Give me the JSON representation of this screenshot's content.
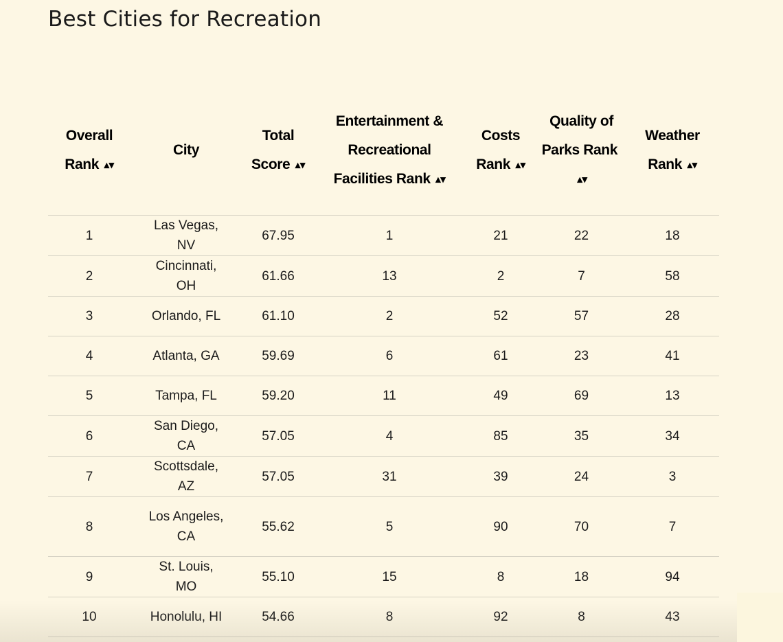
{
  "page": {
    "title": "Best Cities for Recreation"
  },
  "table": {
    "columns": [
      {
        "key": "overall_rank",
        "label": "Overall Rank",
        "sortable": true
      },
      {
        "key": "city",
        "label": "City",
        "sortable": false
      },
      {
        "key": "total_score",
        "label": "Total Score",
        "sortable": true
      },
      {
        "key": "entertainment_rank",
        "label": "Entertainment & Recreational Facilities Rank",
        "sortable": true
      },
      {
        "key": "costs_rank",
        "label": "Costs Rank",
        "sortable": true
      },
      {
        "key": "parks_rank",
        "label": "Quality of Parks Rank",
        "sortable": true
      },
      {
        "key": "weather_rank",
        "label": "Weather Rank",
        "sortable": true
      }
    ],
    "sort_icon": "sort-up-down-icon",
    "sort_glyph": "▴▾",
    "rows": [
      {
        "overall_rank": "1",
        "city": "Las Vegas, NV",
        "total_score": "67.95",
        "entertainment_rank": "1",
        "costs_rank": "21",
        "parks_rank": "22",
        "weather_rank": "18"
      },
      {
        "overall_rank": "2",
        "city": "Cincinnati, OH",
        "total_score": "61.66",
        "entertainment_rank": "13",
        "costs_rank": "2",
        "parks_rank": "7",
        "weather_rank": "58"
      },
      {
        "overall_rank": "3",
        "city": "Orlando, FL",
        "total_score": "61.10",
        "entertainment_rank": "2",
        "costs_rank": "52",
        "parks_rank": "57",
        "weather_rank": "28"
      },
      {
        "overall_rank": "4",
        "city": "Atlanta, GA",
        "total_score": "59.69",
        "entertainment_rank": "6",
        "costs_rank": "61",
        "parks_rank": "23",
        "weather_rank": "41"
      },
      {
        "overall_rank": "5",
        "city": "Tampa, FL",
        "total_score": "59.20",
        "entertainment_rank": "11",
        "costs_rank": "49",
        "parks_rank": "69",
        "weather_rank": "13"
      },
      {
        "overall_rank": "6",
        "city": "San Diego, CA",
        "total_score": "57.05",
        "entertainment_rank": "4",
        "costs_rank": "85",
        "parks_rank": "35",
        "weather_rank": "34"
      },
      {
        "overall_rank": "7",
        "city": "Scottsdale, AZ",
        "total_score": "57.05",
        "entertainment_rank": "31",
        "costs_rank": "39",
        "parks_rank": "24",
        "weather_rank": "3"
      },
      {
        "overall_rank": "8",
        "city": "Los Angeles, CA",
        "total_score": "55.62",
        "entertainment_rank": "5",
        "costs_rank": "90",
        "parks_rank": "70",
        "weather_rank": "7"
      },
      {
        "overall_rank": "9",
        "city": "St. Louis, MO",
        "total_score": "55.10",
        "entertainment_rank": "15",
        "costs_rank": "8",
        "parks_rank": "18",
        "weather_rank": "94"
      },
      {
        "overall_rank": "10",
        "city": "Honolulu, HI",
        "total_score": "54.66",
        "entertainment_rank": "8",
        "costs_rank": "92",
        "parks_rank": "8",
        "weather_rank": "43"
      }
    ]
  },
  "colors": {
    "background": "#fdf7e4",
    "text": "#111111",
    "divider": "#d6d2c4"
  }
}
